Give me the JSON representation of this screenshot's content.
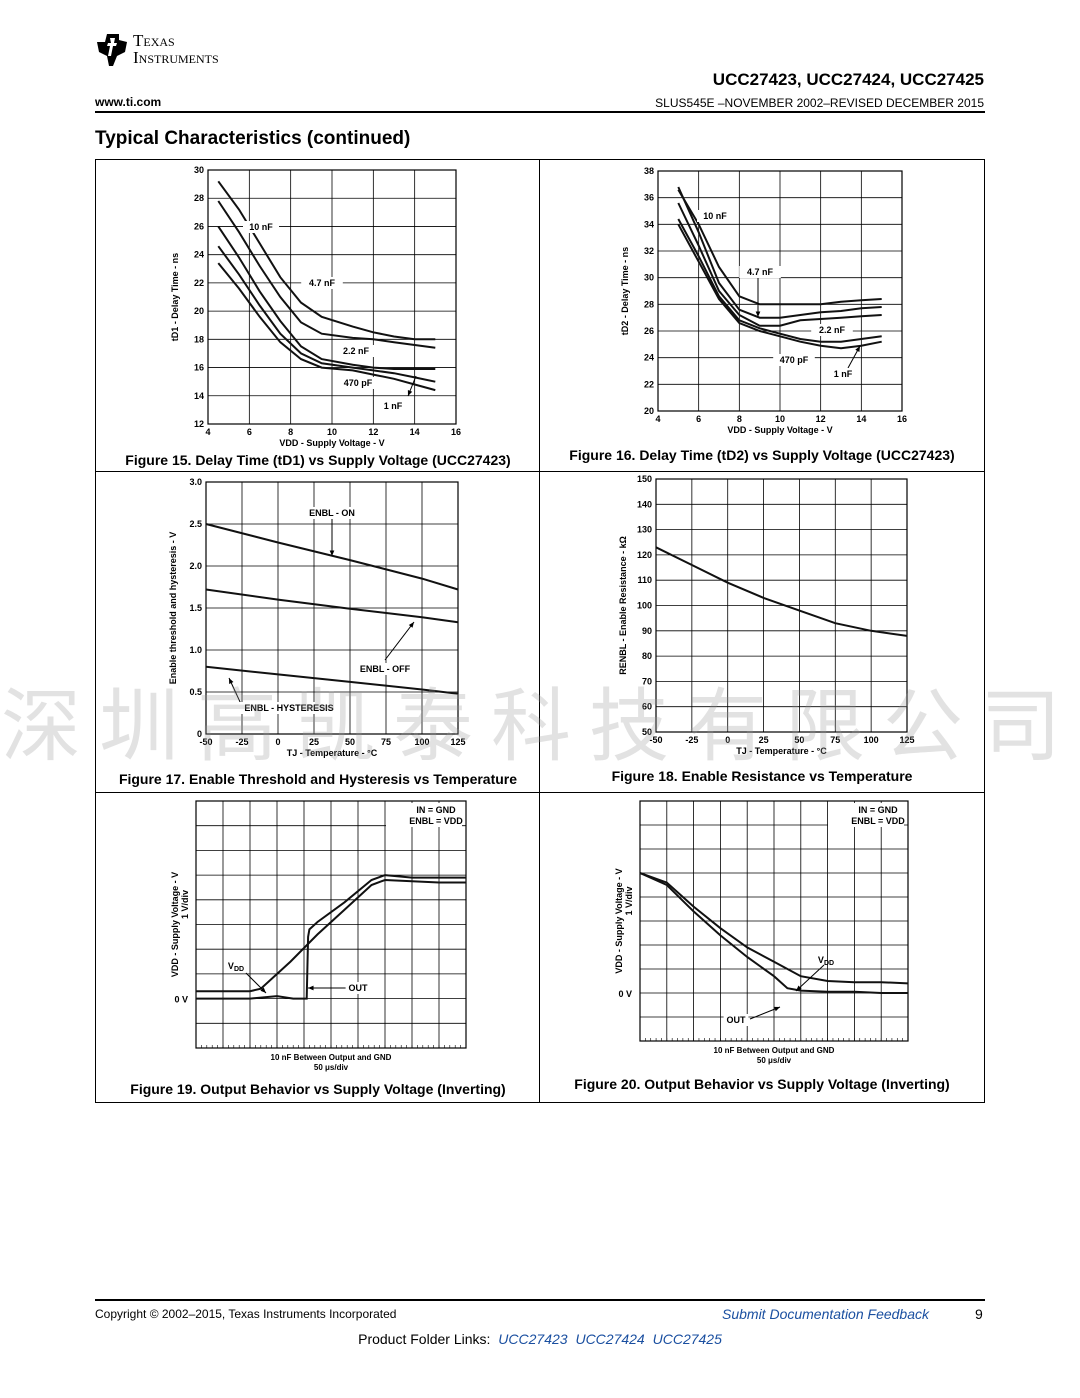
{
  "header": {
    "logo_line1": "Texas",
    "logo_line2": "Instruments",
    "part_numbers": "UCC27423, UCC27424, UCC27425",
    "website": "www.ti.com",
    "doc_info": "SLUS545E –NOVEMBER 2002–REVISED DECEMBER 2015"
  },
  "section_title": "Typical Characteristics (continued)",
  "figures": [
    {
      "caption": "Figure 15. Delay Time (tD1) vs Supply Voltage (UCC27423)"
    },
    {
      "caption": "Figure 16. Delay Time (tD2) vs Supply Voltage (UCC27423)"
    },
    {
      "caption": "Figure 17. Enable Threshold and Hysteresis vs Temperature"
    },
    {
      "caption": "Figure 18. Enable Resistance vs Temperature"
    },
    {
      "caption": "Figure 19. Output Behavior vs Supply Voltage (Inverting)"
    },
    {
      "caption": "Figure 20. Output Behavior vs Supply Voltage (Inverting)"
    }
  ],
  "chart_data": [
    {
      "type": "line",
      "xlabel": "VDD - Supply Voltage - V",
      "ylabel": "tD1 - Delay Time - ns",
      "xlim": [
        4,
        16
      ],
      "ylim": [
        12,
        30
      ],
      "xticks": [
        4,
        6,
        8,
        10,
        12,
        14,
        16
      ],
      "yticks": [
        12,
        14,
        16,
        18,
        20,
        22,
        24,
        26,
        28,
        30
      ],
      "series": [
        {
          "name": "10 nF",
          "x": [
            4.5,
            5.5,
            6.5,
            7.5,
            8.5,
            9.5,
            11,
            12,
            13,
            14,
            15
          ],
          "y": [
            29.2,
            27.2,
            24.8,
            22.4,
            20.6,
            19.6,
            18.9,
            18.5,
            18.2,
            18.0,
            18.0
          ]
        },
        {
          "name": "4.7 nF",
          "x": [
            4.5,
            5.5,
            6.5,
            7.5,
            8.5,
            9.5,
            11,
            12,
            13,
            14,
            15
          ],
          "y": [
            27.8,
            25.6,
            23.2,
            21.0,
            19.2,
            18.4,
            18.1,
            18.0,
            17.8,
            17.6,
            17.4
          ]
        },
        {
          "name": "2.2 nF",
          "x": [
            4.5,
            5.5,
            6.5,
            7.5,
            8.5,
            9.5,
            11,
            12,
            13,
            14,
            15
          ],
          "y": [
            26.0,
            23.8,
            21.4,
            19.3,
            17.5,
            16.6,
            16.2,
            16.0,
            15.9,
            15.9,
            15.9
          ]
        },
        {
          "name": "470 pF",
          "x": [
            4.5,
            5.5,
            6.5,
            7.5,
            8.5,
            9.5,
            11,
            12,
            13,
            14,
            15
          ],
          "y": [
            24.6,
            22.6,
            20.4,
            18.4,
            17.0,
            16.3,
            16.0,
            15.8,
            15.6,
            15.3,
            15.0
          ]
        },
        {
          "name": "1 nF",
          "x": [
            4.5,
            5.5,
            6.5,
            7.5,
            8.5,
            9.5,
            11,
            12,
            13,
            14,
            15
          ],
          "y": [
            23.4,
            21.6,
            19.6,
            17.8,
            16.6,
            16.0,
            15.8,
            15.5,
            15.2,
            14.8,
            14.4
          ]
        }
      ]
    },
    {
      "type": "line",
      "xlabel": "VDD - Supply Voltage - V",
      "ylabel": "tD2 - Delay Time - ns",
      "xlim": [
        4,
        16
      ],
      "ylim": [
        20,
        38
      ],
      "xticks": [
        4,
        6,
        8,
        10,
        12,
        14,
        16
      ],
      "yticks": [
        20,
        22,
        24,
        26,
        28,
        30,
        32,
        34,
        36,
        38
      ],
      "series": [
        {
          "name": "10 nF",
          "x": [
            5,
            6,
            7,
            8,
            9,
            10,
            11,
            12,
            13,
            14,
            15
          ],
          "y": [
            36.6,
            34.0,
            30.8,
            28.6,
            28.0,
            28.0,
            28.0,
            28.0,
            28.2,
            28.3,
            28.4
          ]
        },
        {
          "name": "4.7 nF",
          "x": [
            5,
            6,
            7,
            8,
            9,
            10,
            11,
            12,
            13,
            14,
            15
          ],
          "y": [
            36.8,
            33.4,
            29.6,
            27.6,
            27.0,
            27.0,
            27.2,
            27.4,
            27.5,
            27.7,
            27.8
          ]
        },
        {
          "name": "2.2 nF",
          "x": [
            5,
            6,
            7,
            8,
            9,
            10,
            11,
            12,
            13,
            14,
            15
          ],
          "y": [
            35.6,
            32.4,
            29.0,
            27.2,
            26.4,
            26.4,
            26.8,
            26.9,
            27.0,
            27.1,
            27.2
          ]
        },
        {
          "name": "470 pF",
          "x": [
            5,
            6,
            7,
            8,
            9,
            10,
            11,
            12,
            13,
            14,
            15
          ],
          "y": [
            34.4,
            31.6,
            28.6,
            26.8,
            26.2,
            25.8,
            25.4,
            25.2,
            25.2,
            25.4,
            25.6
          ]
        },
        {
          "name": "1 nF",
          "x": [
            5,
            6,
            7,
            8,
            9,
            10,
            11,
            12,
            13,
            14,
            15
          ],
          "y": [
            34.0,
            31.2,
            28.4,
            26.6,
            26.0,
            25.6,
            25.2,
            24.9,
            24.7,
            24.9,
            25.2
          ]
        }
      ]
    },
    {
      "type": "line",
      "xlabel": "TJ - Temperature - °C",
      "ylabel": "Enable threshold and hysteresis - V",
      "xlim": [
        -50,
        125
      ],
      "ylim": [
        0,
        3.0
      ],
      "xticks": [
        -50,
        -25,
        0,
        25,
        50,
        75,
        100,
        125
      ],
      "yticks": [
        0,
        0.5,
        1.0,
        1.5,
        2.0,
        2.5,
        3.0
      ],
      "ytick_labels": [
        "0",
        "0.5",
        "1.0",
        "1.5",
        "2.0",
        "2.5",
        "3.0"
      ],
      "series": [
        {
          "name": "ENBL - ON",
          "x": [
            -50,
            0,
            50,
            100,
            125
          ],
          "y": [
            2.5,
            2.28,
            2.07,
            1.85,
            1.72
          ]
        },
        {
          "name": "ENBL - OFF",
          "x": [
            -50,
            0,
            50,
            100,
            125
          ],
          "y": [
            1.72,
            1.6,
            1.49,
            1.39,
            1.33
          ]
        },
        {
          "name": "ENBL - HYSTERESIS",
          "x": [
            -50,
            0,
            50,
            100,
            125
          ],
          "y": [
            0.8,
            0.71,
            0.62,
            0.53,
            0.48
          ]
        }
      ]
    },
    {
      "type": "line",
      "xlabel": "TJ - Temperature - °C",
      "ylabel": "RENBL - Enable Resistance - kΩ",
      "xlim": [
        -50,
        125
      ],
      "ylim": [
        50,
        150
      ],
      "xticks": [
        -50,
        -25,
        0,
        25,
        50,
        75,
        100,
        125
      ],
      "yticks": [
        50,
        60,
        70,
        80,
        90,
        100,
        110,
        120,
        130,
        140,
        150
      ],
      "series": [
        {
          "name": "",
          "x": [
            -50,
            -25,
            0,
            25,
            50,
            75,
            100,
            125
          ],
          "y": [
            123,
            116,
            109,
            103,
            98,
            93,
            90,
            88
          ]
        }
      ]
    },
    {
      "type": "line",
      "xlabel": "10 nF Between Output and GND",
      "xlabel2": "50 μs/div",
      "ylabel": "VDD - Supply Voltage - V",
      "ylabel2": "1 V/div",
      "zero_label": "0 V",
      "inset_line1": "IN = GND",
      "inset_line2": "ENBL = VDD",
      "series": [
        {
          "name": "VDD",
          "x": [
            0,
            1,
            2,
            2.4,
            3.5,
            4.5,
            5.5,
            6.5,
            7,
            8,
            9,
            10
          ],
          "y": [
            0.3,
            0.3,
            0.3,
            0.4,
            1.5,
            2.6,
            3.6,
            4.6,
            4.8,
            4.75,
            4.7,
            4.7
          ]
        },
        {
          "name": "OUT",
          "x": [
            0,
            1,
            2,
            3,
            3.6,
            4.1,
            4.15,
            4.2,
            4.5,
            5.5,
            6.5,
            7,
            8,
            9,
            10
          ],
          "y": [
            0,
            0,
            0,
            0.1,
            0,
            0,
            2.5,
            2.8,
            3.1,
            3.9,
            4.8,
            5.0,
            4.9,
            4.9,
            4.9
          ]
        }
      ]
    },
    {
      "type": "line",
      "xlabel": "10 nF Between Output and GND",
      "xlabel2": "50 μs/div",
      "ylabel": "VDD - Supply Voltage - V",
      "ylabel2": "1 V/div",
      "zero_label": "0 V",
      "inset_line1": "IN = GND",
      "inset_line2": "ENBL = VDD",
      "series": [
        {
          "name": "VDD",
          "x": [
            0,
            1,
            2,
            3,
            4,
            5,
            6,
            7,
            8,
            9,
            10
          ],
          "y": [
            5.0,
            4.6,
            3.6,
            2.7,
            1.9,
            1.3,
            0.7,
            0.5,
            0.45,
            0.45,
            0.4
          ]
        },
        {
          "name": "OUT",
          "x": [
            0,
            1,
            2,
            3,
            4,
            5,
            5.5,
            6,
            7,
            8,
            9,
            10
          ],
          "y": [
            5.0,
            4.5,
            3.4,
            2.4,
            1.5,
            0.7,
            0.2,
            0.1,
            0.05,
            0.05,
            0.0,
            0.0
          ]
        }
      ]
    }
  ],
  "labels": {
    "fig15": [
      "10 nF",
      "4.7 nF",
      "2.2 nF",
      "470 pF",
      "1 nF"
    ],
    "fig16": [
      "10 nF",
      "4.7 nF",
      "2.2 nF",
      "470 pF",
      "1 nF"
    ],
    "fig17": [
      "ENBL - ON",
      "ENBL - OFF",
      "ENBL - HYSTERESIS"
    ],
    "fig19": [
      "VDD",
      "OUT"
    ],
    "fig20": [
      "VDD",
      "OUT"
    ]
  },
  "watermark": "深圳高凯泰科技有限公司",
  "footer": {
    "copyright": "Copyright © 2002–2015, Texas Instruments Incorporated",
    "feedback": "Submit Documentation Feedback",
    "page_number": "9",
    "product_folder_prefix": "Product Folder Links:",
    "product_links": [
      "UCC27423",
      "UCC27424",
      "UCC27425"
    ]
  }
}
